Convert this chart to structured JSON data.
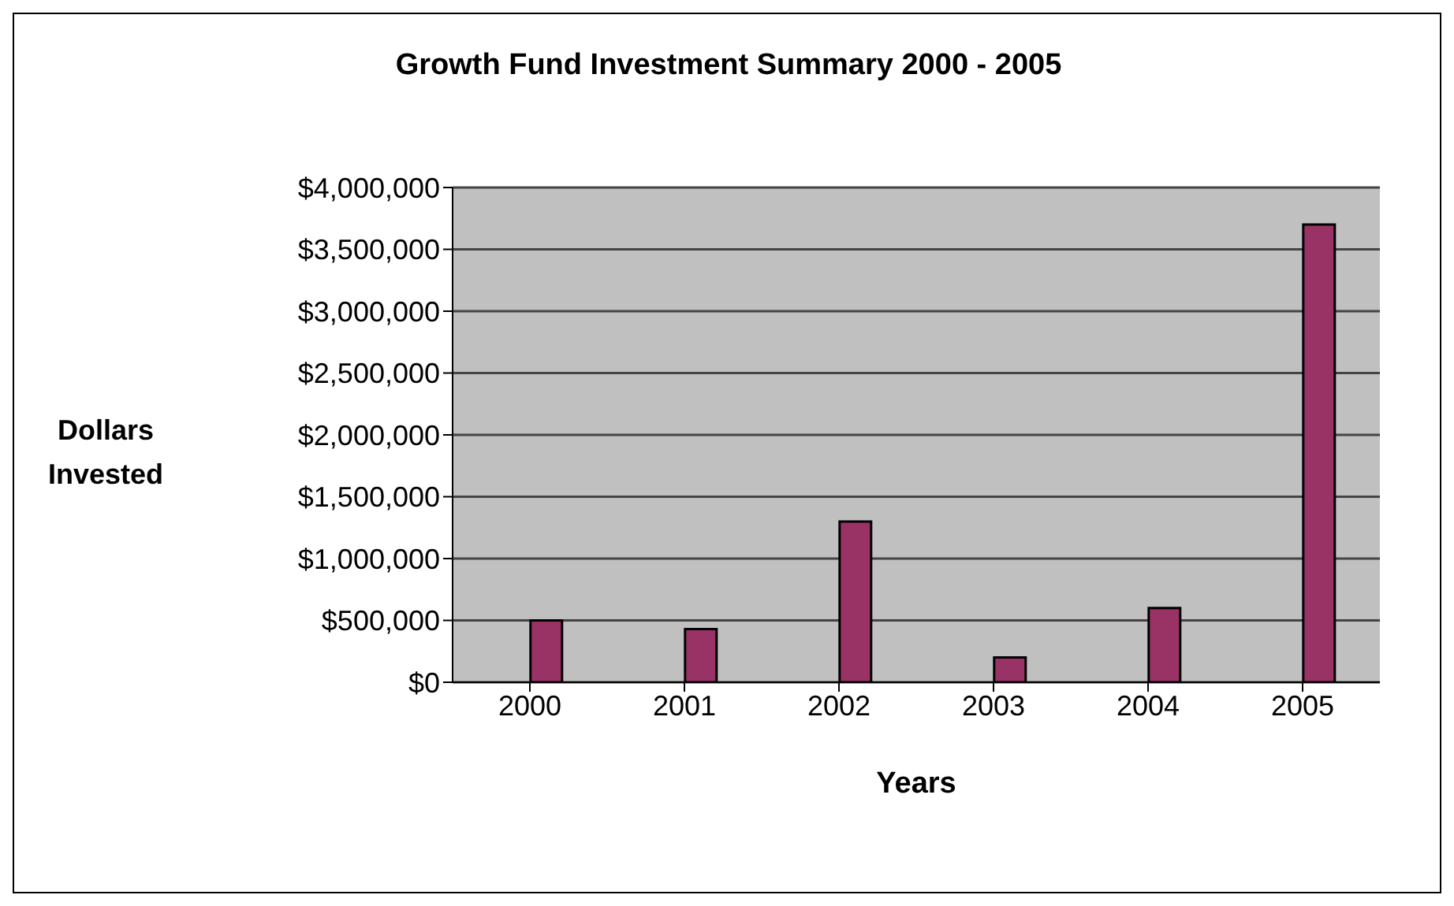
{
  "chart_data": {
    "type": "bar",
    "title": "Growth Fund Investment Summary 2000 - 2005",
    "xlabel": "Years",
    "ylabel": "Dollars Invested",
    "categories": [
      "2000",
      "2001",
      "2002",
      "2003",
      "2004",
      "2005"
    ],
    "series": [
      {
        "color": "#6666cc",
        "values": [
          0,
          0,
          0,
          0,
          0,
          0
        ]
      },
      {
        "color": "#993366",
        "values": [
          500000,
          430000,
          1300000,
          200000,
          600000,
          3700000
        ]
      }
    ],
    "ylim": [
      0,
      4000000
    ],
    "yticks": [
      {
        "value": 0,
        "label": "$0"
      },
      {
        "value": 500000,
        "label": "$500,000"
      },
      {
        "value": 1000000,
        "label": "$1,000,000"
      },
      {
        "value": 1500000,
        "label": "$1,500,000"
      },
      {
        "value": 2000000,
        "label": "$2,000,000"
      },
      {
        "value": 2500000,
        "label": "$2,500,000"
      },
      {
        "value": 3000000,
        "label": "$3,000,000"
      },
      {
        "value": 3500000,
        "label": "$3,500,000"
      },
      {
        "value": 4000000,
        "label": "$4,000,000"
      }
    ],
    "grid": "y",
    "legend": false
  }
}
